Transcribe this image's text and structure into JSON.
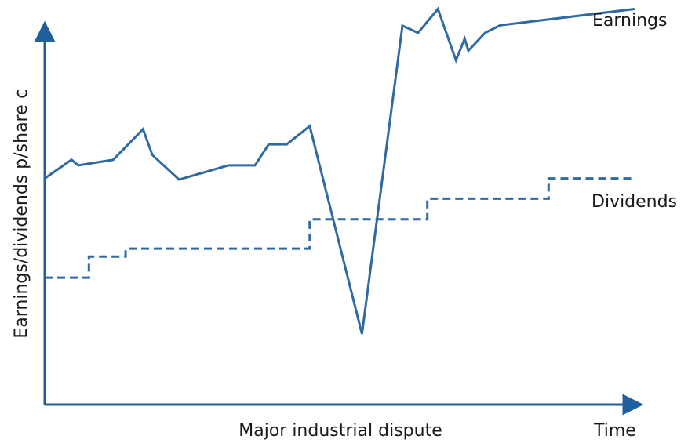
{
  "colors": {
    "line": "#2f6aa3",
    "axis": "#1f5f9e",
    "text": "#1a1a1a"
  },
  "chart_data": {
    "type": "line",
    "xlabel": "Time",
    "ylabel": "Earnings/dividends p/share ¢",
    "annotations": [
      "Major industrial dispute"
    ],
    "grid": false,
    "axis_ticks": false,
    "series": [
      {
        "name": "Earnings",
        "style": "solid",
        "x": [
          0,
          0.043,
          0.054,
          0.11,
          0.158,
          0.173,
          0.216,
          0.295,
          0.338,
          0.36,
          0.389,
          0.426,
          0.51,
          0.575,
          0.6,
          0.632,
          0.661,
          0.675,
          0.681,
          0.708,
          0.732,
          0.948
        ],
        "y": [
          0.57,
          0.617,
          0.603,
          0.617,
          0.694,
          0.629,
          0.567,
          0.603,
          0.603,
          0.656,
          0.656,
          0.702,
          0.178,
          0.955,
          0.937,
          0.997,
          0.868,
          0.922,
          0.892,
          0.937,
          0.956,
          0.997
        ]
      },
      {
        "name": "Dividends",
        "style": "dashed",
        "x": [
          0,
          0.071,
          0.071,
          0.13,
          0.13,
          0.426,
          0.426,
          0.615,
          0.615,
          0.81,
          0.81,
          0.948
        ],
        "y": [
          0.32,
          0.32,
          0.373,
          0.373,
          0.393,
          0.393,
          0.467,
          0.467,
          0.519,
          0.519,
          0.57,
          0.57
        ]
      }
    ]
  }
}
